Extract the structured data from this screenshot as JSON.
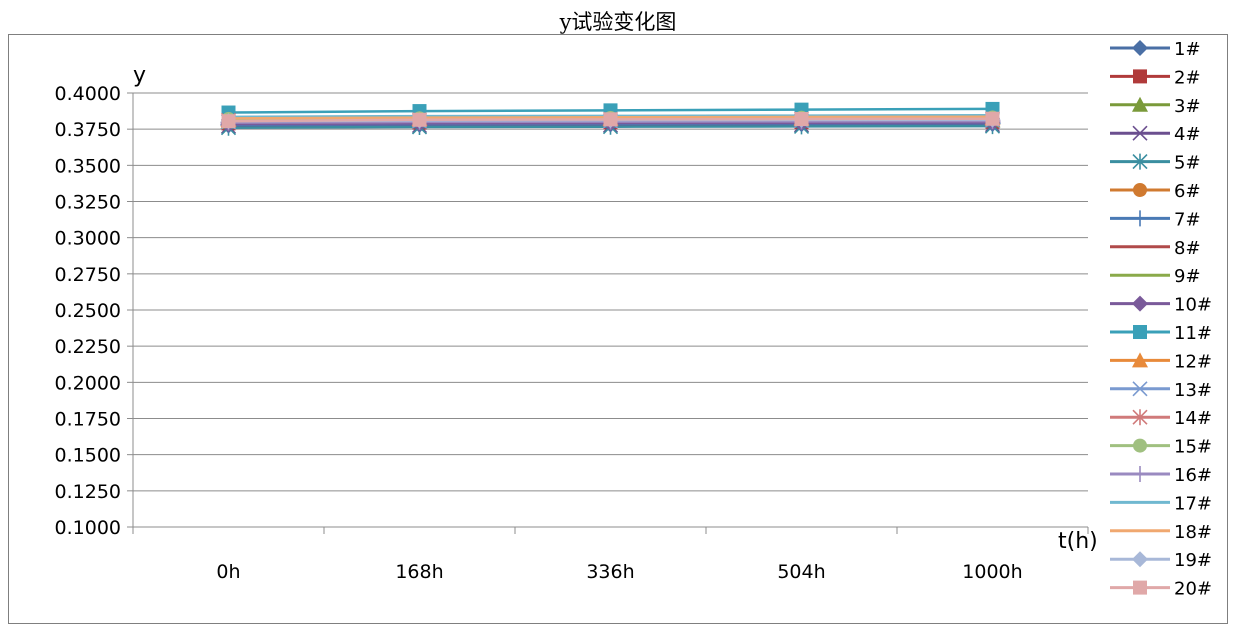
{
  "chart_data": {
    "type": "line",
    "title": "y试验变化图",
    "xlabel": "t(h)",
    "ylabel": "y",
    "categories": [
      "0h",
      "168h",
      "336h",
      "504h",
      "1000h"
    ],
    "ylim": [
      0.1,
      0.4
    ],
    "yticks": [
      "0.1000",
      "0.1250",
      "0.1500",
      "0.1750",
      "0.2000",
      "0.2250",
      "0.2500",
      "0.2750",
      "0.3000",
      "0.3250",
      "0.3500",
      "0.3750",
      "0.4000"
    ],
    "grid": true,
    "legend": "right",
    "series": [
      {
        "name": "1#",
        "color": "#4a6fa5",
        "marker": "diamond",
        "values": [
          0.3775,
          0.378,
          0.3782,
          0.3784,
          0.3786
        ]
      },
      {
        "name": "2#",
        "color": "#b03a3a",
        "marker": "square",
        "values": [
          0.379,
          0.3795,
          0.3797,
          0.3799,
          0.3801
        ]
      },
      {
        "name": "3#",
        "color": "#7a9a3a",
        "marker": "triangle",
        "values": [
          0.38,
          0.3805,
          0.3807,
          0.3809,
          0.3811
        ]
      },
      {
        "name": "4#",
        "color": "#6b4f8f",
        "marker": "x",
        "values": [
          0.377,
          0.3775,
          0.3777,
          0.3779,
          0.3781
        ]
      },
      {
        "name": "5#",
        "color": "#3a8ea0",
        "marker": "star",
        "values": [
          0.376,
          0.3765,
          0.3767,
          0.3769,
          0.3771
        ]
      },
      {
        "name": "6#",
        "color": "#d07a30",
        "marker": "circle",
        "values": [
          0.3805,
          0.381,
          0.3812,
          0.3814,
          0.3816
        ]
      },
      {
        "name": "7#",
        "color": "#4a7ab5",
        "marker": "plus",
        "values": [
          0.378,
          0.3785,
          0.3787,
          0.3789,
          0.3791
        ]
      },
      {
        "name": "8#",
        "color": "#b04a4a",
        "marker": "none",
        "values": [
          0.3795,
          0.38,
          0.3802,
          0.3804,
          0.3806
        ]
      },
      {
        "name": "9#",
        "color": "#8aaa4a",
        "marker": "none",
        "values": [
          0.381,
          0.3815,
          0.3817,
          0.3819,
          0.3821
        ]
      },
      {
        "name": "10#",
        "color": "#7a5a9a",
        "marker": "diamond",
        "values": [
          0.3785,
          0.379,
          0.3792,
          0.3794,
          0.3796
        ]
      },
      {
        "name": "11#",
        "color": "#3aa0b8",
        "marker": "square",
        "values": [
          0.3865,
          0.3875,
          0.388,
          0.3885,
          0.389
        ]
      },
      {
        "name": "12#",
        "color": "#e88a3a",
        "marker": "triangle",
        "values": [
          0.3815,
          0.382,
          0.3822,
          0.3824,
          0.3826
        ]
      },
      {
        "name": "13#",
        "color": "#7a9ad0",
        "marker": "x",
        "values": [
          0.38,
          0.3805,
          0.3807,
          0.3809,
          0.3811
        ]
      },
      {
        "name": "14#",
        "color": "#d07a7a",
        "marker": "star",
        "values": [
          0.381,
          0.3815,
          0.3817,
          0.3819,
          0.3821
        ]
      },
      {
        "name": "15#",
        "color": "#a0c080",
        "marker": "circle",
        "values": [
          0.382,
          0.3825,
          0.3827,
          0.3829,
          0.3831
        ]
      },
      {
        "name": "16#",
        "color": "#9a8ac0",
        "marker": "plus",
        "values": [
          0.3795,
          0.38,
          0.3802,
          0.3804,
          0.3806
        ]
      },
      {
        "name": "17#",
        "color": "#70b8d0",
        "marker": "none",
        "values": [
          0.3835,
          0.384,
          0.3842,
          0.3844,
          0.3846
        ]
      },
      {
        "name": "18#",
        "color": "#f0a870",
        "marker": "none",
        "values": [
          0.3825,
          0.383,
          0.3832,
          0.3834,
          0.3836
        ]
      },
      {
        "name": "19#",
        "color": "#a8b8d8",
        "marker": "diamond",
        "values": [
          0.3805,
          0.381,
          0.3812,
          0.3814,
          0.3816
        ]
      },
      {
        "name": "20#",
        "color": "#e0a8a8",
        "marker": "square",
        "values": [
          0.3805,
          0.3815,
          0.3818,
          0.382,
          0.3822
        ]
      }
    ]
  }
}
